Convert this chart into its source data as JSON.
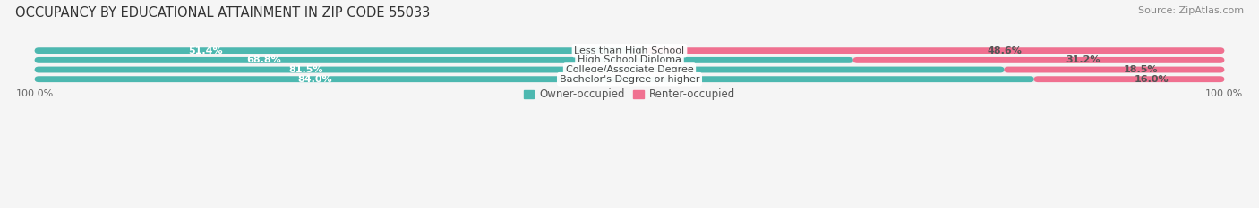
{
  "title": "OCCUPANCY BY EDUCATIONAL ATTAINMENT IN ZIP CODE 55033",
  "source": "Source: ZipAtlas.com",
  "categories": [
    "Less than High School",
    "High School Diploma",
    "College/Associate Degree",
    "Bachelor's Degree or higher"
  ],
  "owner_values": [
    51.4,
    68.8,
    81.5,
    84.0
  ],
  "renter_values": [
    48.6,
    31.2,
    18.5,
    16.0
  ],
  "owner_color": "#4db8b0",
  "renter_color": "#f07090",
  "row_bg_color": "#e8e8e8",
  "background_color": "#f5f5f5",
  "title_fontsize": 10.5,
  "source_fontsize": 8,
  "label_fontsize": 8,
  "pct_fontsize": 8,
  "legend_fontsize": 8.5,
  "axis_label_fontsize": 8
}
